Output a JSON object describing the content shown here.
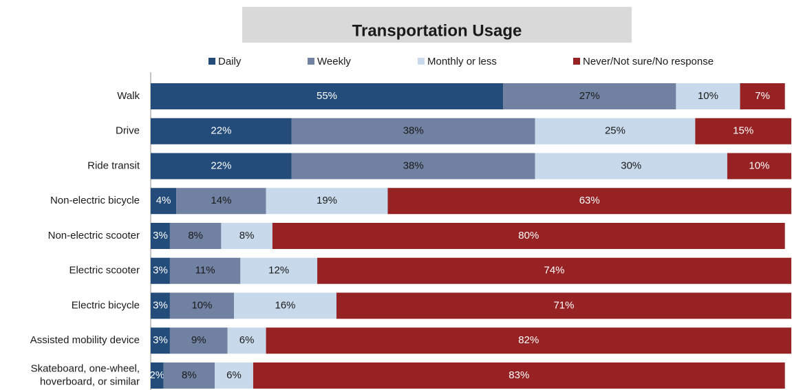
{
  "chart_data": {
    "type": "stacked_bar_horizontal",
    "title": "Transportation Usage",
    "categories": [
      "Walk",
      "Drive",
      "Ride transit",
      "Non-electric bicycle",
      "Non-electric scooter",
      "Electric scooter",
      "Electric bicycle",
      "Assisted mobility device",
      "Skateboard, one-wheel,\nhoverboard, or similar"
    ],
    "xlim": [
      0,
      100
    ],
    "series": [
      {
        "name": "Daily",
        "color": "#244c7a",
        "label_color": "#ffffff",
        "values": [
          55,
          22,
          22,
          4,
          3,
          3,
          3,
          3,
          2
        ],
        "value_labels": [
          "55%",
          "22%",
          "22%",
          "4%",
          "3%",
          "3%",
          "3%",
          "3%",
          "2%"
        ]
      },
      {
        "name": "Weekly",
        "color": "#7081a2",
        "label_color": "#1a1a1a",
        "values": [
          27,
          38,
          38,
          14,
          8,
          11,
          10,
          9,
          8
        ],
        "value_labels": [
          "27%",
          "38%",
          "38%",
          "14%",
          "8%",
          "11%",
          "10%",
          "9%",
          "8%"
        ]
      },
      {
        "name": "Monthly or less",
        "color": "#c7d9ea",
        "label_color": "#1a1a1a",
        "values": [
          10,
          25,
          30,
          19,
          8,
          12,
          16,
          6,
          6
        ],
        "value_labels": [
          "10%",
          "25%",
          "30%",
          "19%",
          "8%",
          "12%",
          "16%",
          "6%",
          "6%"
        ]
      },
      {
        "name": "Never/Not sure/No response",
        "color": "#962224",
        "label_color": "#ffffff",
        "values": [
          7,
          15,
          10,
          63,
          80,
          74,
          71,
          82,
          83
        ],
        "value_labels": [
          "7%",
          "15%",
          "10%",
          "63%",
          "80%",
          "74%",
          "71%",
          "82%",
          "83%"
        ]
      }
    ]
  }
}
